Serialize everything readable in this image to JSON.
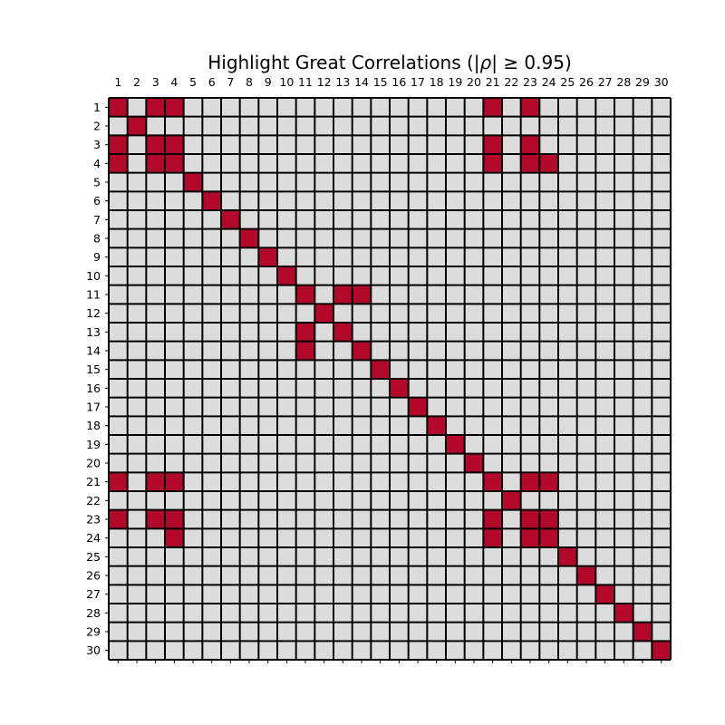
{
  "chart_data": {
    "type": "heatmap",
    "title": "Highlight Great Correlations (|ρ| ≥ 0.95)",
    "title_parts": {
      "prefix": "Highlight Great Correlations (|",
      "symbol": "ρ",
      "suffix": "| ≥ 0.95)"
    },
    "x_tick_labels": [
      "1",
      "2",
      "3",
      "4",
      "5",
      "6",
      "7",
      "8",
      "9",
      "10",
      "11",
      "12",
      "13",
      "14",
      "15",
      "16",
      "17",
      "18",
      "19",
      "20",
      "21",
      "22",
      "23",
      "24",
      "25",
      "26",
      "27",
      "28",
      "29",
      "30"
    ],
    "y_tick_labels": [
      "1",
      "2",
      "3",
      "4",
      "5",
      "6",
      "7",
      "8",
      "9",
      "10",
      "11",
      "12",
      "13",
      "14",
      "15",
      "16",
      "17",
      "18",
      "19",
      "20",
      "21",
      "22",
      "23",
      "24",
      "25",
      "26",
      "27",
      "28",
      "29",
      "30"
    ],
    "x_axis_position": "top",
    "threshold": 0.95,
    "colors": {
      "highlight": "#b2082a",
      "background": "#dcdcdc",
      "grid": "#000000"
    },
    "highlighted_cells": [
      [
        1,
        1
      ],
      [
        1,
        3
      ],
      [
        1,
        4
      ],
      [
        1,
        21
      ],
      [
        1,
        23
      ],
      [
        2,
        2
      ],
      [
        3,
        1
      ],
      [
        3,
        3
      ],
      [
        3,
        4
      ],
      [
        3,
        21
      ],
      [
        3,
        23
      ],
      [
        4,
        1
      ],
      [
        4,
        3
      ],
      [
        4,
        4
      ],
      [
        4,
        21
      ],
      [
        4,
        23
      ],
      [
        4,
        24
      ],
      [
        5,
        5
      ],
      [
        6,
        6
      ],
      [
        7,
        7
      ],
      [
        8,
        8
      ],
      [
        9,
        9
      ],
      [
        10,
        10
      ],
      [
        11,
        11
      ],
      [
        11,
        13
      ],
      [
        11,
        14
      ],
      [
        12,
        12
      ],
      [
        13,
        11
      ],
      [
        13,
        13
      ],
      [
        14,
        11
      ],
      [
        14,
        14
      ],
      [
        15,
        15
      ],
      [
        16,
        16
      ],
      [
        17,
        17
      ],
      [
        18,
        18
      ],
      [
        19,
        19
      ],
      [
        20,
        20
      ],
      [
        21,
        1
      ],
      [
        21,
        3
      ],
      [
        21,
        4
      ],
      [
        21,
        21
      ],
      [
        21,
        23
      ],
      [
        21,
        24
      ],
      [
        22,
        22
      ],
      [
        23,
        1
      ],
      [
        23,
        3
      ],
      [
        23,
        4
      ],
      [
        23,
        21
      ],
      [
        23,
        23
      ],
      [
        23,
        24
      ],
      [
        24,
        4
      ],
      [
        24,
        21
      ],
      [
        24,
        23
      ],
      [
        24,
        24
      ],
      [
        25,
        25
      ],
      [
        26,
        26
      ],
      [
        27,
        27
      ],
      [
        28,
        28
      ],
      [
        29,
        29
      ],
      [
        30,
        30
      ]
    ]
  }
}
